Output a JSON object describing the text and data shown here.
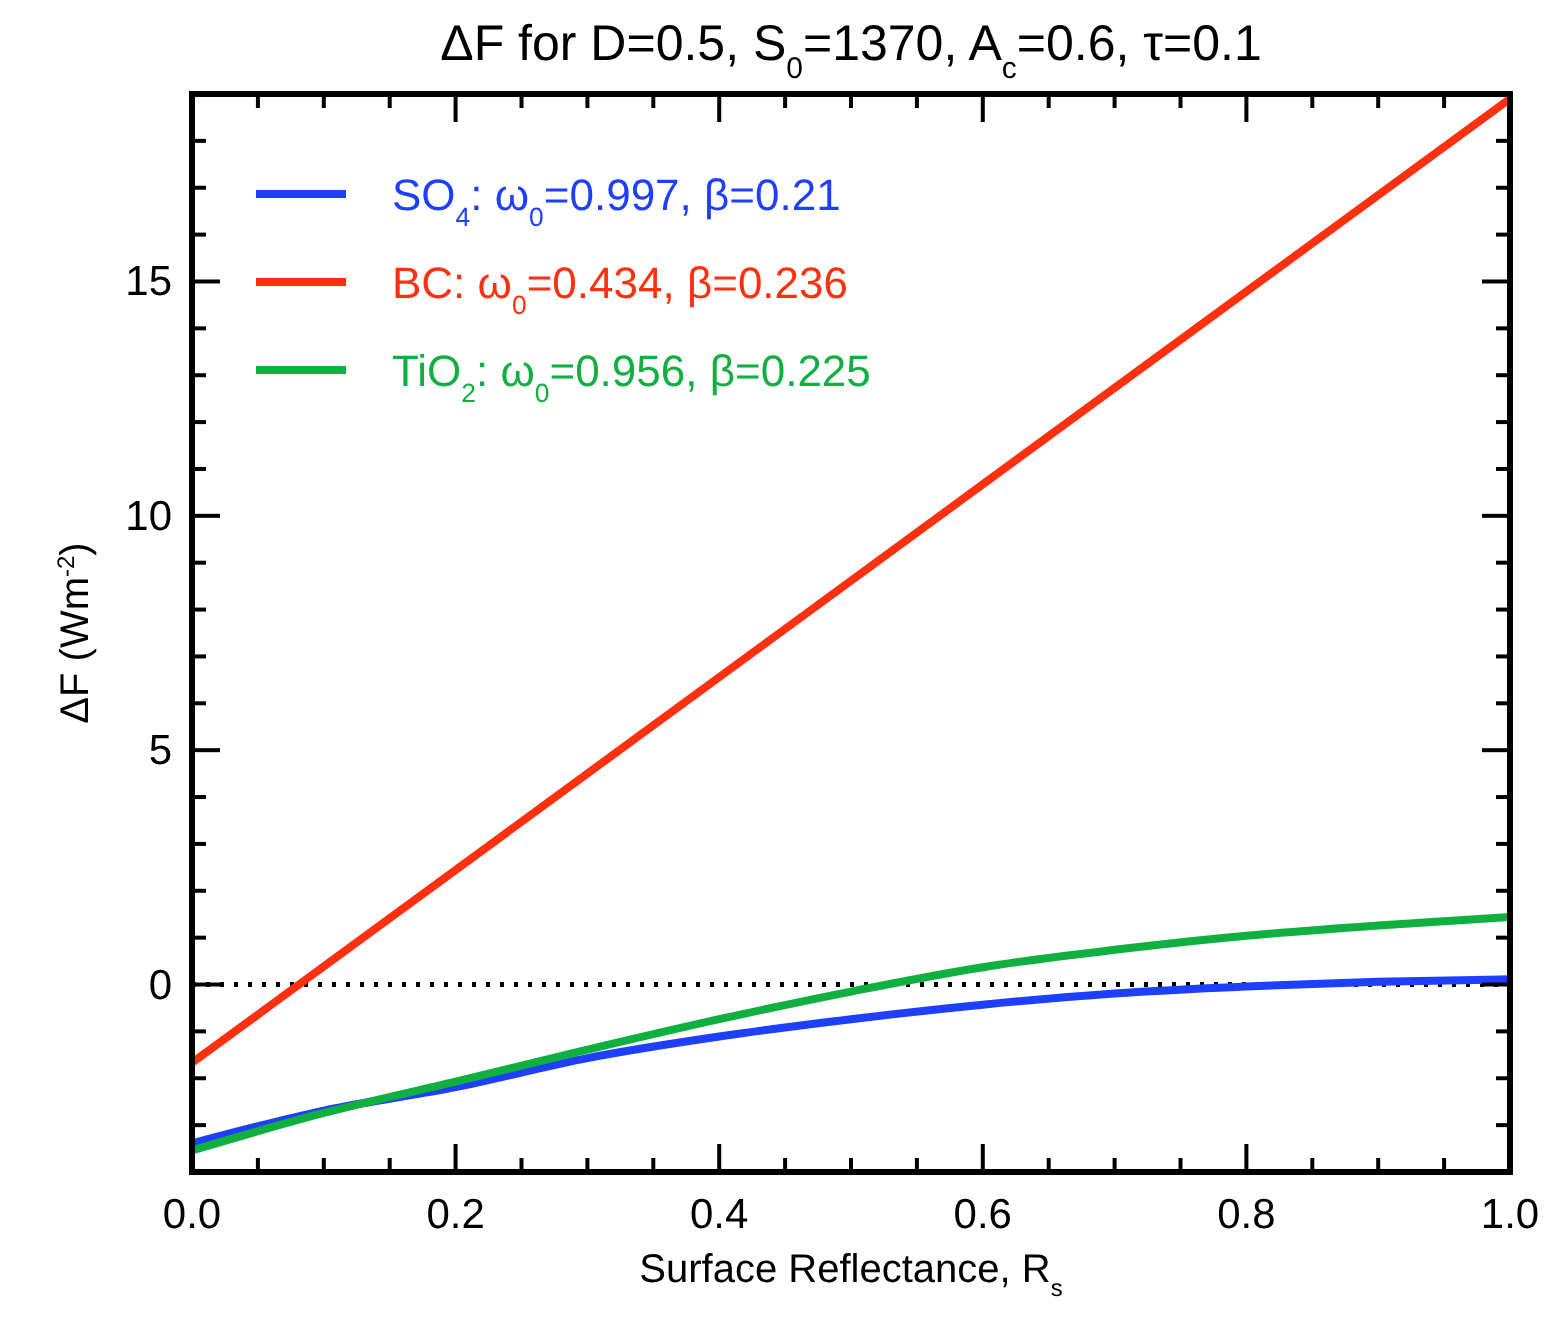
{
  "chart_data": {
    "type": "line",
    "title": "ΔF for D=0.5, S$_{0}$=1370, A$_{c}$=0.6, τ=0.1",
    "xlabel": "Surface Reflectance, R$_{s}$",
    "ylabel": "ΔF (Wm$^{-2}$)",
    "x": [
      0,
      0.1,
      0.2,
      0.3,
      0.4,
      0.5,
      0.6,
      0.7,
      0.8,
      0.9,
      1.0
    ],
    "series": [
      {
        "name": "SO$_{4}$: ω$_{0}$=0.997, β=0.21",
        "color": "#1f3fff",
        "values": [
          -3.39,
          -2.69,
          -2.19,
          -1.57,
          -1.11,
          -0.74,
          -0.43,
          -0.19,
          -0.04,
          0.06,
          0.11
        ]
      },
      {
        "name": "BC: ω$_{0}$=0.434, β=0.236",
        "color": "#ff3010",
        "x": [
          0,
          1.0
        ],
        "values": [
          -1.67,
          18.9
        ]
      },
      {
        "name": "TiO$_{2}$: ω$_{0}$=0.956, β=0.225",
        "color": "#10b040",
        "values": [
          -3.54,
          -2.74,
          -2.07,
          -1.39,
          -0.74,
          -0.15,
          0.37,
          0.74,
          1.04,
          1.26,
          1.44
        ]
      }
    ],
    "xlim": [
      0,
      1
    ],
    "ylim": [
      -4,
      19
    ],
    "xticks": [
      {
        "value": 0,
        "label": "0.0"
      },
      {
        "value": 0.05,
        "label": null
      },
      {
        "value": 0.1,
        "label": null
      },
      {
        "value": 0.15,
        "label": null
      },
      {
        "value": 0.2,
        "label": "0.2"
      },
      {
        "value": 0.25,
        "label": null
      },
      {
        "value": 0.3,
        "label": null
      },
      {
        "value": 0.35,
        "label": null
      },
      {
        "value": 0.4,
        "label": "0.4"
      },
      {
        "value": 0.45,
        "label": null
      },
      {
        "value": 0.5,
        "label": null
      },
      {
        "value": 0.55,
        "label": null
      },
      {
        "value": 0.6,
        "label": "0.6"
      },
      {
        "value": 0.65,
        "label": null
      },
      {
        "value": 0.7,
        "label": null
      },
      {
        "value": 0.75,
        "label": null
      },
      {
        "value": 0.8,
        "label": "0.8"
      },
      {
        "value": 0.85,
        "label": null
      },
      {
        "value": 0.9,
        "label": null
      },
      {
        "value": 0.95,
        "label": null
      },
      {
        "value": 1,
        "label": "1.0"
      }
    ],
    "yticks": [
      {
        "value": -4,
        "label": null
      },
      {
        "value": -3,
        "label": null
      },
      {
        "value": -2,
        "label": null
      },
      {
        "value": -1,
        "label": null
      },
      0,
      {
        "value": 1,
        "label": null
      },
      {
        "value": 2,
        "label": null
      },
      {
        "value": 3,
        "label": null
      },
      {
        "value": 4,
        "label": null
      },
      5,
      {
        "value": 6,
        "label": null
      },
      {
        "value": 7,
        "label": null
      },
      {
        "value": 8,
        "label": null
      },
      {
        "value": 9,
        "label": null
      },
      10,
      {
        "value": 11,
        "label": null
      },
      {
        "value": 12,
        "label": null
      },
      {
        "value": 13,
        "label": null
      },
      {
        "value": 14,
        "label": null
      },
      15,
      {
        "value": 16,
        "label": null
      },
      {
        "value": 17,
        "label": null
      },
      {
        "value": 18,
        "label": null
      },
      {
        "value": 19,
        "label": null
      }
    ],
    "ref_lines": [
      {
        "axis": "y",
        "value": 0,
        "color": "#000000",
        "line_style": "dotted"
      }
    ],
    "legend": "top left",
    "grid": false,
    "line_style": "solid"
  }
}
